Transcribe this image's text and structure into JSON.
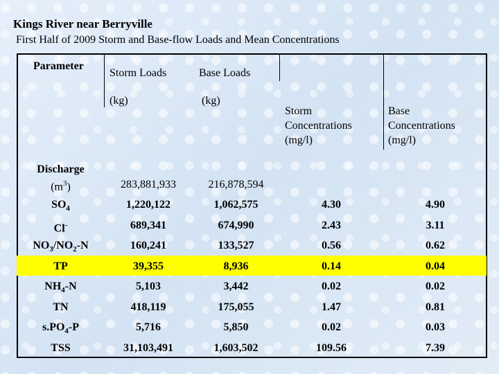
{
  "title": "Kings River near Berryville",
  "subtitle": "First Half of 2009 Storm and Base-flow Loads and Mean Concentrations",
  "headers": {
    "parameter": "Parameter",
    "storm_loads": "Storm Loads",
    "storm_loads_unit": "(kg)",
    "base_loads": "Base Loads",
    "base_loads_unit": "(kg)",
    "storm_conc_1": "Storm",
    "storm_conc_2": "Concentrations",
    "storm_conc_3": "(mg/l)",
    "base_conc_1": "Base",
    "base_conc_2": "Concentrations",
    "base_conc_3": "(mg/l)"
  },
  "discharge": {
    "label_1": "Discharge",
    "label_2": "(m",
    "label_sup": "3",
    "label_3": ")",
    "storm": "283,881,933",
    "base": "216,878,594"
  },
  "rows": [
    {
      "p_main": "SO",
      "p_sub": "4",
      "p_tail": "",
      "storm": "1,220,122",
      "base": "1,062,575",
      "sc": "4.30",
      "bc": "4.90"
    },
    {
      "p_main": "Cl",
      "p_sub": "-",
      "p_tail": "",
      "storm": "689,341",
      "base": "674,990",
      "sc": "2.43",
      "bc": "3.11"
    },
    {
      "p_main": "NO",
      "p_sub": "3",
      "p_tail": "/NO",
      "p_sub2": "2",
      "p_tail2": "-N",
      "storm": "160,241",
      "base": "133,527",
      "sc": "0.56",
      "bc": "0.62"
    },
    {
      "p_main": "TP",
      "p_sub": "",
      "p_tail": "",
      "storm": "39,355",
      "base": "8,936",
      "sc": "0.14",
      "bc": "0.04"
    },
    {
      "p_main": "NH",
      "p_sub": "4",
      "p_tail": "-N",
      "storm": "5,103",
      "base": "3,442",
      "sc": "0.02",
      "bc": "0.02"
    },
    {
      "p_main": "TN",
      "p_sub": "",
      "p_tail": "",
      "storm": "418,119",
      "base": "175,055",
      "sc": "1.47",
      "bc": "0.81"
    },
    {
      "p_main": "s.PO",
      "p_sub": "4",
      "p_tail": "-P",
      "storm": "5,716",
      "base": "5,850",
      "sc": "0.02",
      "bc": "0.03"
    },
    {
      "p_main": "TSS",
      "p_sub": "",
      "p_tail": "",
      "storm": "31,103,491",
      "base": "1,603,502",
      "sc": "109.56",
      "bc": "7.39"
    }
  ],
  "colors": {
    "highlight": "#ffff00",
    "background": "#dde9f5"
  }
}
